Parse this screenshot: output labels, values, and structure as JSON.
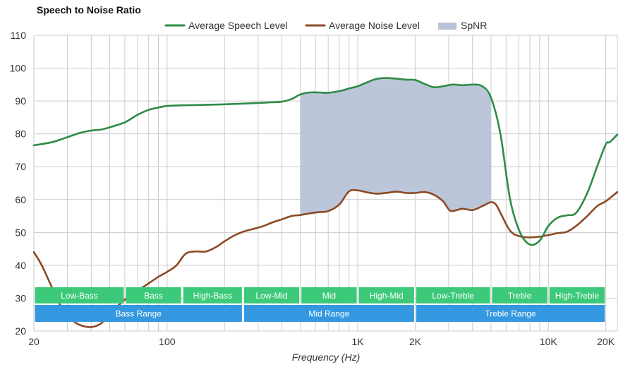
{
  "chart_data": {
    "type": "line",
    "title": "Speech to Noise Ratio",
    "xlabel": "Frequency (Hz)",
    "ylabel": "",
    "x_scale": "log",
    "xlim": [
      20,
      23000
    ],
    "ylim": [
      20,
      110
    ],
    "yticks": [
      20,
      30,
      40,
      50,
      60,
      70,
      80,
      90,
      100,
      110
    ],
    "xticks": [
      {
        "value": 20,
        "label": "20"
      },
      {
        "value": 100,
        "label": "100"
      },
      {
        "value": 1000,
        "label": "1K"
      },
      {
        "value": 2000,
        "label": "2K"
      },
      {
        "value": 10000,
        "label": "10K"
      },
      {
        "value": 20000,
        "label": "20K"
      }
    ],
    "grid": true,
    "legend_position": "top",
    "legend": [
      {
        "name": "Average Speech Level",
        "kind": "line",
        "color": "#2e8b45"
      },
      {
        "name": "Average Noise Level",
        "kind": "line",
        "color": "#8b4a24"
      },
      {
        "name": "SpNR",
        "kind": "area",
        "color": "#b8c3d8"
      }
    ],
    "series": [
      {
        "name": "Average Speech Level",
        "color": "#2e8b45",
        "points": [
          [
            20,
            76.5
          ],
          [
            25,
            77.5
          ],
          [
            30,
            79
          ],
          [
            35,
            80.3
          ],
          [
            40,
            81
          ],
          [
            45,
            81.3
          ],
          [
            50,
            82
          ],
          [
            60,
            83.5
          ],
          [
            70,
            85.8
          ],
          [
            80,
            87.3
          ],
          [
            90,
            88
          ],
          [
            100,
            88.5
          ],
          [
            120,
            88.7
          ],
          [
            150,
            88.8
          ],
          [
            200,
            89
          ],
          [
            250,
            89.2
          ],
          [
            300,
            89.4
          ],
          [
            350,
            89.6
          ],
          [
            400,
            89.8
          ],
          [
            450,
            90.6
          ],
          [
            500,
            92
          ],
          [
            560,
            92.6
          ],
          [
            630,
            92.6
          ],
          [
            700,
            92.5
          ],
          [
            800,
            93
          ],
          [
            900,
            93.8
          ],
          [
            1000,
            94.5
          ],
          [
            1100,
            95.5
          ],
          [
            1250,
            96.7
          ],
          [
            1400,
            97
          ],
          [
            1600,
            96.8
          ],
          [
            1800,
            96.5
          ],
          [
            2000,
            96.4
          ],
          [
            2200,
            95.4
          ],
          [
            2500,
            94.2
          ],
          [
            2800,
            94.5
          ],
          [
            3150,
            95
          ],
          [
            3550,
            94.8
          ],
          [
            4000,
            95
          ],
          [
            4500,
            94.5
          ],
          [
            5000,
            91
          ],
          [
            5600,
            80
          ],
          [
            6300,
            60
          ],
          [
            7100,
            50
          ],
          [
            8000,
            46.3
          ],
          [
            9000,
            47.5
          ],
          [
            10000,
            52
          ],
          [
            11200,
            54.5
          ],
          [
            12500,
            55.2
          ],
          [
            14000,
            56
          ],
          [
            16000,
            62
          ],
          [
            18000,
            70
          ],
          [
            20000,
            76.8
          ],
          [
            21000,
            77.5
          ],
          [
            23000,
            79.8
          ]
        ]
      },
      {
        "name": "Average Noise Level",
        "color": "#8b4a24",
        "points": [
          [
            20,
            44
          ],
          [
            22,
            40
          ],
          [
            25,
            33
          ],
          [
            28,
            27
          ],
          [
            31.5,
            23.5
          ],
          [
            35,
            21.8
          ],
          [
            40,
            21.2
          ],
          [
            45,
            22.3
          ],
          [
            50,
            25
          ],
          [
            56,
            28
          ],
          [
            63,
            30.5
          ],
          [
            71,
            32.5
          ],
          [
            80,
            34.5
          ],
          [
            90,
            36.5
          ],
          [
            100,
            38
          ],
          [
            112,
            40
          ],
          [
            125,
            43.5
          ],
          [
            140,
            44.2
          ],
          [
            160,
            44.2
          ],
          [
            180,
            45.5
          ],
          [
            200,
            47.3
          ],
          [
            224,
            49
          ],
          [
            250,
            50.2
          ],
          [
            280,
            51
          ],
          [
            315,
            51.8
          ],
          [
            355,
            53
          ],
          [
            400,
            54
          ],
          [
            450,
            55
          ],
          [
            500,
            55.3
          ],
          [
            560,
            55.8
          ],
          [
            630,
            56.2
          ],
          [
            700,
            56.5
          ],
          [
            800,
            58.5
          ],
          [
            900,
            62.5
          ],
          [
            1000,
            62.8
          ],
          [
            1120,
            62.2
          ],
          [
            1250,
            61.8
          ],
          [
            1400,
            62
          ],
          [
            1600,
            62.4
          ],
          [
            1800,
            62
          ],
          [
            2000,
            62
          ],
          [
            2240,
            62.3
          ],
          [
            2500,
            61.5
          ],
          [
            2800,
            59.5
          ],
          [
            3000,
            57
          ],
          [
            3150,
            56.5
          ],
          [
            3550,
            57.2
          ],
          [
            4000,
            56.8
          ],
          [
            4500,
            58
          ],
          [
            5000,
            59.2
          ],
          [
            5300,
            58.5
          ],
          [
            5600,
            56
          ],
          [
            6300,
            50.5
          ],
          [
            7100,
            48.8
          ],
          [
            8000,
            48.5
          ],
          [
            9000,
            48.7
          ],
          [
            10000,
            49.2
          ],
          [
            11200,
            49.8
          ],
          [
            12500,
            50.2
          ],
          [
            14000,
            52
          ],
          [
            16000,
            55
          ],
          [
            18000,
            58
          ],
          [
            20000,
            59.5
          ],
          [
            23000,
            62.3
          ]
        ]
      }
    ],
    "spnr_area": {
      "name": "SpNR",
      "from_hz": 500,
      "to_hz": 5000,
      "between": [
        "Average Speech Level",
        "Average Noise Level"
      ]
    },
    "bands_top": [
      {
        "label": "Low-Bass",
        "from": 20,
        "to": 60
      },
      {
        "label": "Bass",
        "from": 60,
        "to": 120
      },
      {
        "label": "High-Bass",
        "from": 120,
        "to": 250
      },
      {
        "label": "Low-Mid",
        "from": 250,
        "to": 500
      },
      {
        "label": "Mid",
        "from": 500,
        "to": 1000
      },
      {
        "label": "High-Mid",
        "from": 1000,
        "to": 2000
      },
      {
        "label": "Low-Treble",
        "from": 2000,
        "to": 5000
      },
      {
        "label": "Treble",
        "from": 5000,
        "to": 10000
      },
      {
        "label": "High-Treble",
        "from": 10000,
        "to": 20000
      }
    ],
    "bands_bottom": [
      {
        "label": "Bass Range",
        "from": 20,
        "to": 250
      },
      {
        "label": "Mid Range",
        "from": 250,
        "to": 2000
      },
      {
        "label": "Treble Range",
        "from": 2000,
        "to": 20000
      }
    ],
    "colors": {
      "band_top": "#3dc97a",
      "band_bottom": "#3498e0",
      "grid": "#cccccc"
    }
  }
}
